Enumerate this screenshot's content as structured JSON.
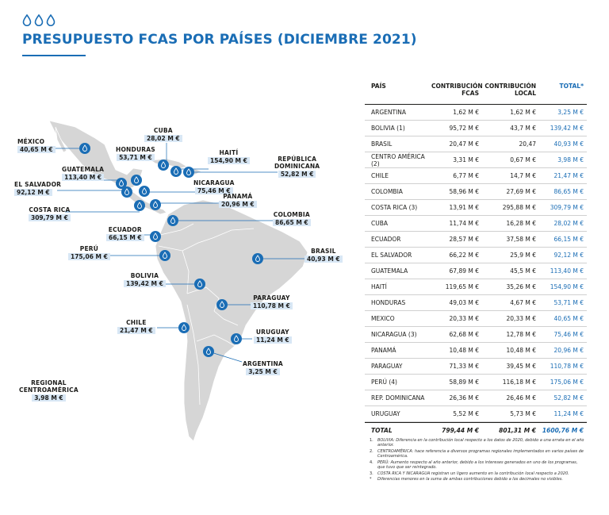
{
  "header": {
    "title": "PRESUPUESTO FCAS POR PAÍSES (DICIEMBRE 2021)",
    "accent": "#1a6db5"
  },
  "map": {
    "labels": [
      {
        "name": "MÉXICO",
        "value": "40,65 M €"
      },
      {
        "name": "CUBA",
        "value": "28,02 M €"
      },
      {
        "name": "HONDURAS",
        "value": "53,71 M €"
      },
      {
        "name": "HAITÍ",
        "value": "154,90 M €"
      },
      {
        "name": "REPÚBLICA\nDOMINICANA",
        "value": "52,82 M €"
      },
      {
        "name": "GUATEMALA",
        "value": "113,40 M €"
      },
      {
        "name": "NICARAGUA",
        "value": "75,46 M €"
      },
      {
        "name": "EL SALVADOR",
        "value": "92,12 M €"
      },
      {
        "name": "PANAMÁ",
        "value": "20,96 M €"
      },
      {
        "name": "COSTA RICA",
        "value": "309,79 M €"
      },
      {
        "name": "COLOMBIA",
        "value": "86,65 M €"
      },
      {
        "name": "ECUADOR",
        "value": "66,15 M €"
      },
      {
        "name": "PERÚ",
        "value": "175,06 M €"
      },
      {
        "name": "BRASIL",
        "value": "40,93 M €"
      },
      {
        "name": "BOLIVIA",
        "value": "139,42 M €"
      },
      {
        "name": "PARAGUAY",
        "value": "110,78 M €"
      },
      {
        "name": "CHILE",
        "value": "21,47 M €"
      },
      {
        "name": "URUGUAY",
        "value": "11,24 M €"
      },
      {
        "name": "ARGENTINA",
        "value": "3,25 M €"
      },
      {
        "name": "REGIONAL\nCENTROAMÉRICA",
        "value": "3,98 M €"
      }
    ],
    "marker_color": "#1a6db5",
    "land_color": "#d6d6d6"
  },
  "table": {
    "headers": [
      "PAÍS",
      "CONTRIBUCIÓN\nFCAS",
      "CONTRIBUCIÓN\nLOCAL",
      "TOTAL*"
    ],
    "rows": [
      [
        "ARGENTINA",
        "1,62 M €",
        "1,62 M €",
        "3,25 M €"
      ],
      [
        "BOLIVIA (1)",
        "95,72 M €",
        "43,7 M €",
        "139,42 M €"
      ],
      [
        "BRASIL",
        "20,47 M €",
        "20,47",
        "40,93 M €"
      ],
      [
        "CENTRO AMÉRICA (2)",
        "3,31 M €",
        "0,67 M €",
        "3,98 M €"
      ],
      [
        "CHILE",
        "6,77 M €",
        "14,7 M €",
        "21,47 M €"
      ],
      [
        "COLOMBIA",
        "58,96 M €",
        "27,69 M €",
        "86,65 M €"
      ],
      [
        "COSTA RICA (3)",
        "13,91 M €",
        "295,88 M €",
        "309,79 M €"
      ],
      [
        "CUBA",
        "11,74 M €",
        "16,28 M €",
        "28,02 M €"
      ],
      [
        "ECUADOR",
        "28,57 M €",
        "37,58 M €",
        "66,15 M €"
      ],
      [
        "EL SALVADOR",
        "66,22 M €",
        "25,9 M €",
        "92,12 M €"
      ],
      [
        "GUATEMALA",
        "67,89 M €",
        "45,5 M €",
        "113,40 M €"
      ],
      [
        "HAITÍ",
        "119,65 M €",
        "35,26 M €",
        "154,90 M €"
      ],
      [
        "HONDURAS",
        "49,03 M €",
        "4,67 M €",
        "53,71 M €"
      ],
      [
        "MEXICO",
        "20,33 M €",
        "20,33 M €",
        "40,65 M €"
      ],
      [
        "NICARAGUA (3)",
        "62,68 M €",
        "12,78 M €",
        "75,46 M €"
      ],
      [
        "PANAMÁ",
        "10,48 M €",
        "10,48 M €",
        "20,96 M €"
      ],
      [
        "PARAGUAY",
        "71,33 M €",
        "39,45 M €",
        "110,78 M €"
      ],
      [
        "PERÚ  (4)",
        "58,89 M €",
        "116,18 M €",
        "175,06 M €"
      ],
      [
        "REP. DOMINICANA",
        "26,36 M €",
        "26,46 M €",
        "52,82 M €"
      ],
      [
        "URUGUAY",
        "5,52 M €",
        "5,73 M €",
        "11,24 M €"
      ]
    ],
    "total": [
      "TOTAL",
      "799,44 M €",
      "801,31 M €",
      "1600,76 M €"
    ]
  },
  "notes": [
    {
      "k": "1.",
      "t": "BOLIVIA: Diferencia en la contribución local respecto a los datos de 2020, debido a una errata en el año anterior."
    },
    {
      "k": "2.",
      "t": "CENTROAMÉRICA: hace referencia a diversos programas regionales implementados en varios países de Centroamérica."
    },
    {
      "k": "4.",
      "t": "PERÚ: Aumento respecto al año anterior, debido a los intereses generados en uno de los programas, que tuvo que ser reintegrado."
    },
    {
      "k": "3.",
      "t": "COSTA RICA Y NICARAGUA registran un ligero aumento en la contribución local respecto a 2020."
    },
    {
      "k": "*",
      "t": "Diferencias menores en la suma de ambas contribuciones debido a los decimales no visibles."
    }
  ]
}
